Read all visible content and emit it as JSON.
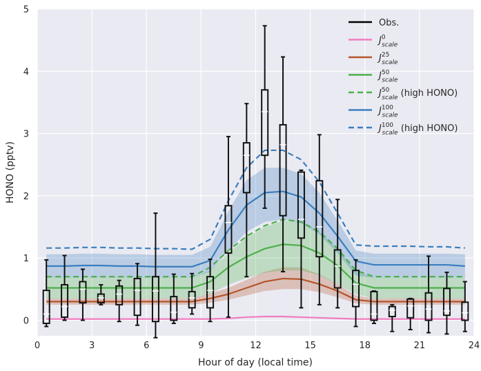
{
  "chart_data": {
    "type": "line",
    "xlabel": "Hour of day (local time)",
    "ylabel": "HONO (pptv)",
    "xlim": [
      0,
      24
    ],
    "ylim": [
      -0.25,
      5
    ],
    "xticks": [
      0,
      3,
      6,
      9,
      12,
      15,
      18,
      21,
      24
    ],
    "yticks": [
      0,
      1,
      2,
      3,
      4,
      5
    ],
    "grid": true,
    "background": "#eaeaf2",
    "legend_position": "top-right",
    "x": [
      0.5,
      1.5,
      2.5,
      3.5,
      4.5,
      5.5,
      6.5,
      7.5,
      8.5,
      9.5,
      10.5,
      11.5,
      12.5,
      13.5,
      14.5,
      15.5,
      16.5,
      17.5,
      18.5,
      19.5,
      20.5,
      21.5,
      22.5,
      23.5
    ],
    "series": [
      {
        "legend_main": "Obs.",
        "color": "#000000",
        "style": "box",
        "boxes": [
          {
            "x": 0.5,
            "whislo": -0.1,
            "q1": -0.05,
            "med": 0.1,
            "q3": 0.48,
            "whishi": 0.97
          },
          {
            "x": 1.5,
            "whislo": 0.0,
            "q1": 0.05,
            "med": 0.22,
            "q3": 0.57,
            "whishi": 1.04
          },
          {
            "x": 2.5,
            "whislo": 0.0,
            "q1": 0.28,
            "med": 0.5,
            "q3": 0.62,
            "whishi": 0.82
          },
          {
            "x": 3.5,
            "whislo": 0.25,
            "q1": 0.28,
            "med": 0.36,
            "q3": 0.42,
            "whishi": 0.57
          },
          {
            "x": 4.5,
            "whislo": -0.02,
            "q1": 0.25,
            "med": 0.42,
            "q3": 0.55,
            "whishi": 0.64
          },
          {
            "x": 5.5,
            "whislo": -0.08,
            "q1": 0.08,
            "med": 0.48,
            "q3": 0.67,
            "whishi": 0.91
          },
          {
            "x": 6.5,
            "whislo": -0.28,
            "q1": -0.02,
            "med": 0.47,
            "q3": 0.7,
            "whishi": 1.72
          },
          {
            "x": 7.5,
            "whislo": -0.05,
            "q1": 0.0,
            "med": 0.13,
            "q3": 0.38,
            "whishi": 0.74
          },
          {
            "x": 8.5,
            "whislo": 0.1,
            "q1": 0.2,
            "med": 0.36,
            "q3": 0.46,
            "whishi": 0.75
          },
          {
            "x": 9.5,
            "whislo": -0.02,
            "q1": 0.2,
            "med": 0.48,
            "q3": 0.7,
            "whishi": 0.98
          },
          {
            "x": 10.5,
            "whislo": 0.05,
            "q1": 1.08,
            "med": 1.57,
            "q3": 1.84,
            "whishi": 2.95
          },
          {
            "x": 11.5,
            "whislo": 0.7,
            "q1": 2.05,
            "med": 2.65,
            "q3": 2.85,
            "whishi": 3.48
          },
          {
            "x": 12.5,
            "whislo": 1.8,
            "q1": 2.65,
            "med": 3.35,
            "q3": 3.7,
            "whishi": 4.73
          },
          {
            "x": 13.5,
            "whislo": 0.78,
            "q1": 1.68,
            "med": 2.82,
            "q3": 3.14,
            "whishi": 4.23
          },
          {
            "x": 14.5,
            "whislo": 0.2,
            "q1": 1.32,
            "med": 1.62,
            "q3": 2.38,
            "whishi": 2.41
          },
          {
            "x": 15.5,
            "whislo": 0.25,
            "q1": 1.02,
            "med": 1.5,
            "q3": 2.24,
            "whishi": 2.98
          },
          {
            "x": 16.5,
            "whislo": 0.2,
            "q1": 0.52,
            "med": 0.87,
            "q3": 1.13,
            "whishi": 1.94
          },
          {
            "x": 17.5,
            "whislo": -0.1,
            "q1": 0.22,
            "med": 0.58,
            "q3": 0.8,
            "whishi": 0.97
          },
          {
            "x": 18.5,
            "whislo": -0.05,
            "q1": 0.0,
            "med": 0.1,
            "q3": 0.46,
            "whishi": 0.47
          },
          {
            "x": 19.5,
            "whislo": -0.18,
            "q1": 0.06,
            "med": 0.16,
            "q3": 0.22,
            "whishi": 0.25
          },
          {
            "x": 20.5,
            "whislo": -0.15,
            "q1": 0.04,
            "med": 0.23,
            "q3": 0.34,
            "whishi": 0.35
          },
          {
            "x": 21.5,
            "whislo": -0.2,
            "q1": 0.0,
            "med": 0.18,
            "q3": 0.44,
            "whishi": 1.03
          },
          {
            "x": 22.5,
            "whislo": -0.22,
            "q1": 0.08,
            "med": 0.15,
            "q3": 0.51,
            "whishi": 0.77
          },
          {
            "x": 23.5,
            "whislo": -0.18,
            "q1": 0.0,
            "med": 0.12,
            "q3": 0.29,
            "whishi": 0.62
          }
        ]
      },
      {
        "legend_main": "J",
        "legend_sup": "0",
        "legend_sub": "scale",
        "legend_suffix": "",
        "color": "#f07cbe",
        "style": "solid",
        "values": [
          0.02,
          0.02,
          0.02,
          0.02,
          0.02,
          0.02,
          0.02,
          0.02,
          0.02,
          0.02,
          0.03,
          0.05,
          0.06,
          0.06,
          0.05,
          0.04,
          0.03,
          0.02,
          0.02,
          0.02,
          0.02,
          0.02,
          0.02,
          0.02
        ]
      },
      {
        "legend_main": "J",
        "legend_sup": "25",
        "legend_sub": "scale",
        "legend_suffix": "",
        "color": "#b5542a",
        "style": "solid",
        "band_color": "#b5542a",
        "values": [
          0.3,
          0.3,
          0.3,
          0.3,
          0.3,
          0.3,
          0.3,
          0.3,
          0.3,
          0.35,
          0.42,
          0.52,
          0.62,
          0.67,
          0.66,
          0.58,
          0.47,
          0.33,
          0.3,
          0.3,
          0.3,
          0.3,
          0.3,
          0.3
        ],
        "lower": [
          0.25,
          0.25,
          0.25,
          0.25,
          0.25,
          0.25,
          0.25,
          0.25,
          0.25,
          0.28,
          0.33,
          0.4,
          0.47,
          0.5,
          0.5,
          0.45,
          0.37,
          0.27,
          0.25,
          0.25,
          0.25,
          0.25,
          0.25,
          0.25
        ],
        "upper": [
          0.35,
          0.35,
          0.35,
          0.35,
          0.35,
          0.35,
          0.35,
          0.35,
          0.35,
          0.43,
          0.52,
          0.65,
          0.78,
          0.85,
          0.85,
          0.74,
          0.58,
          0.4,
          0.35,
          0.35,
          0.35,
          0.35,
          0.35,
          0.35
        ]
      },
      {
        "legend_main": "J",
        "legend_sup": "50",
        "legend_sub": "scale",
        "legend_suffix": "",
        "color": "#4daf4a",
        "style": "solid",
        "band_color": "#4daf4a",
        "values": [
          0.52,
          0.52,
          0.52,
          0.52,
          0.52,
          0.52,
          0.52,
          0.52,
          0.52,
          0.62,
          0.85,
          1.02,
          1.15,
          1.22,
          1.2,
          1.08,
          0.88,
          0.6,
          0.52,
          0.52,
          0.52,
          0.52,
          0.52,
          0.52
        ],
        "lower": [
          0.35,
          0.35,
          0.35,
          0.35,
          0.35,
          0.35,
          0.35,
          0.35,
          0.35,
          0.43,
          0.57,
          0.68,
          0.76,
          0.8,
          0.8,
          0.72,
          0.58,
          0.42,
          0.35,
          0.35,
          0.35,
          0.35,
          0.35,
          0.35
        ],
        "upper": [
          0.68,
          0.68,
          0.68,
          0.68,
          0.68,
          0.68,
          0.68,
          0.68,
          0.68,
          0.8,
          1.08,
          1.33,
          1.5,
          1.6,
          1.58,
          1.42,
          1.15,
          0.79,
          0.68,
          0.68,
          0.68,
          0.68,
          0.68,
          0.68
        ]
      },
      {
        "legend_main": "J",
        "legend_sup": "50",
        "legend_sub": "scale",
        "legend_suffix": " (high HONO)",
        "color": "#4daf4a",
        "style": "dashed",
        "values": [
          0.7,
          0.7,
          0.7,
          0.7,
          0.7,
          0.7,
          0.7,
          0.7,
          0.7,
          0.85,
          1.12,
          1.35,
          1.52,
          1.62,
          1.58,
          1.42,
          1.15,
          0.8,
          0.7,
          0.7,
          0.7,
          0.7,
          0.7,
          0.7
        ]
      },
      {
        "legend_main": "J",
        "legend_sup": "100",
        "legend_sub": "scale",
        "legend_suffix": "",
        "color": "#3a7ebf",
        "style": "solid",
        "band_color": "#3a7ebf",
        "values": [
          0.87,
          0.87,
          0.88,
          0.88,
          0.87,
          0.87,
          0.86,
          0.86,
          0.86,
          0.96,
          1.45,
          1.85,
          2.05,
          2.07,
          1.98,
          1.72,
          1.35,
          0.95,
          0.89,
          0.89,
          0.89,
          0.89,
          0.89,
          0.87
        ],
        "lower": [
          0.68,
          0.68,
          0.68,
          0.68,
          0.68,
          0.68,
          0.68,
          0.68,
          0.68,
          0.78,
          1.12,
          1.42,
          1.58,
          1.62,
          1.56,
          1.38,
          1.08,
          0.72,
          0.68,
          0.68,
          0.68,
          0.68,
          0.68,
          0.68
        ],
        "upper": [
          1.06,
          1.06,
          1.07,
          1.07,
          1.06,
          1.06,
          1.05,
          1.05,
          1.05,
          1.18,
          1.75,
          2.25,
          2.45,
          2.45,
          2.35,
          2.05,
          1.6,
          1.12,
          1.07,
          1.07,
          1.07,
          1.07,
          1.07,
          1.06
        ]
      },
      {
        "legend_main": "J",
        "legend_sup": "100",
        "legend_sub": "scale",
        "legend_suffix": " (high HONO)",
        "color": "#3a7ebf",
        "style": "dashed",
        "values": [
          1.16,
          1.16,
          1.17,
          1.17,
          1.16,
          1.16,
          1.15,
          1.15,
          1.14,
          1.3,
          1.92,
          2.45,
          2.73,
          2.73,
          2.58,
          2.22,
          1.72,
          1.21,
          1.19,
          1.19,
          1.19,
          1.18,
          1.18,
          1.16
        ]
      }
    ]
  }
}
